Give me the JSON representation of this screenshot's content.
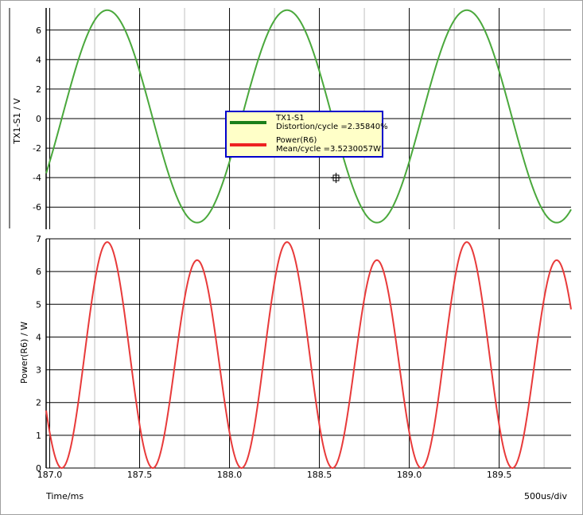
{
  "chart_data": [
    {
      "type": "line",
      "ylabel": "TX1-S1 / V",
      "ylim": [
        -7.5,
        7.5
      ],
      "yticks": [
        6,
        4,
        2,
        0,
        -2,
        -4,
        -6
      ],
      "xlim": [
        186.98,
        189.9
      ],
      "grid": true,
      "series": [
        {
          "name": "TX1-S1",
          "color": "#4aa83c",
          "waveform": "sine",
          "amplitude": 7.2,
          "offset": 0.15,
          "period_ms": 1.0,
          "zero_crossing_rising_ms": 187.07,
          "peaks": [
            {
              "x": 187.32,
              "y": 7.35
            },
            {
              "x": 188.32,
              "y": 7.35
            },
            {
              "x": 189.32,
              "y": 7.35
            }
          ],
          "troughs": [
            {
              "x": 187.82,
              "y": -7.05
            },
            {
              "x": 188.82,
              "y": -7.05
            },
            {
              "x": 189.82,
              "y": -7.05
            }
          ]
        }
      ]
    },
    {
      "type": "line",
      "ylabel": "Power(R6) / W",
      "xlabel": "Time/ms",
      "ylim": [
        0,
        7
      ],
      "yticks": [
        7,
        6,
        5,
        4,
        3,
        2,
        1,
        0
      ],
      "xlim": [
        186.98,
        189.9
      ],
      "xticks": [
        187.0,
        187.5,
        188.0,
        188.5,
        189.0,
        189.5
      ],
      "xticklabels": [
        "187.0",
        "187.5",
        "188.0",
        "188.5",
        "189.0",
        "189.5"
      ],
      "grid": true,
      "series": [
        {
          "name": "Power(R6)",
          "color": "#e83a3a",
          "derived_from": "TX1-S1",
          "peaks_max": 6.9,
          "peaks_min": 6.35
        }
      ]
    }
  ],
  "legend": {
    "entries": [
      {
        "name": "TX1-S1",
        "stat": "Distortion/cycle =2.35840%",
        "color": "#1a7f1a"
      },
      {
        "name": "Power(R6)",
        "stat": "Mean/cycle =3.5230057W",
        "color": "#ee2222"
      }
    ]
  },
  "footer": {
    "xlabel": "Time/ms",
    "scale": "500us/div"
  }
}
